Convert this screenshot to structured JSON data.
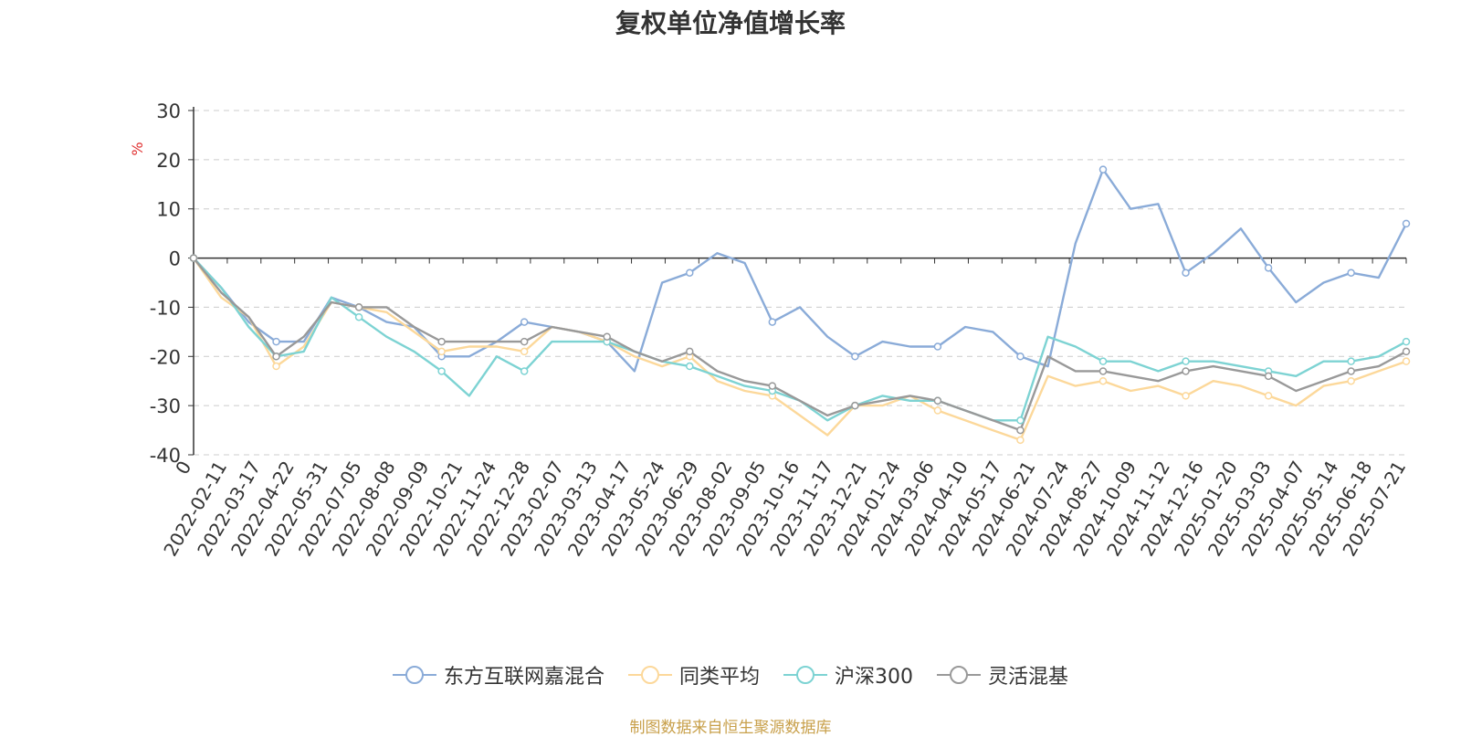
{
  "chart_data": {
    "type": "line",
    "title": "复权单位净值增长率",
    "ylabel": "%",
    "ylim": [
      -40,
      30
    ],
    "yticks": [
      30,
      20,
      10,
      0,
      -10,
      -20,
      -30,
      -40
    ],
    "grid": true,
    "legend_position": "bottom",
    "x_start_label": "0",
    "x_tick_labels": [
      "2022-02-11",
      "2022-03-17",
      "2022-04-22",
      "2022-05-31",
      "2022-07-05",
      "2022-08-08",
      "2022-09-09",
      "2022-10-21",
      "2022-11-24",
      "2022-12-28",
      "2023-02-07",
      "2023-03-13",
      "2023-04-17",
      "2023-05-24",
      "2023-06-29",
      "2023-08-02",
      "2023-09-05",
      "2023-10-16",
      "2023-11-17",
      "2023-12-21",
      "2024-01-24",
      "2024-03-06",
      "2024-04-10",
      "2024-05-17",
      "2024-06-21",
      "2024-07-24",
      "2024-08-27",
      "2024-10-09",
      "2024-11-12",
      "2024-12-16",
      "2025-01-20",
      "2025-03-03",
      "2025-04-07",
      "2025-05-14",
      "2025-06-18",
      "2025-07-21"
    ],
    "series": [
      {
        "name": "东方互联网嘉混合",
        "color": "#8aabd8",
        "values": [
          0,
          -6,
          -13,
          -17,
          -17,
          -8,
          -10,
          -13,
          -14,
          -20,
          -20,
          -17,
          -13,
          -14,
          -15,
          -17,
          -23,
          -5,
          -3,
          1,
          -1,
          -13,
          -10,
          -16,
          -20,
          -17,
          -18,
          -18,
          -14,
          -15,
          -20,
          -22,
          3,
          18,
          10,
          11,
          -3,
          1,
          6,
          -2,
          -9,
          -5,
          -3,
          -4,
          7
        ]
      },
      {
        "name": "同类平均",
        "color": "#fcd89a",
        "values": [
          0,
          -8,
          -12,
          -22,
          -18,
          -9,
          -10,
          -11,
          -15,
          -19,
          -18,
          -18,
          -19,
          -14,
          -15,
          -17,
          -20,
          -22,
          -20,
          -25,
          -27,
          -28,
          -32,
          -36,
          -30,
          -30,
          -28,
          -31,
          -33,
          -35,
          -37,
          -24,
          -26,
          -25,
          -27,
          -26,
          -28,
          -25,
          -26,
          -28,
          -30,
          -26,
          -25,
          -23,
          -21
        ]
      },
      {
        "name": "沪深300",
        "color": "#7dd3d3",
        "values": [
          0,
          -6,
          -14,
          -20,
          -19,
          -8,
          -12,
          -16,
          -19,
          -23,
          -28,
          -20,
          -23,
          -17,
          -17,
          -17,
          -19,
          -21,
          -22,
          -24,
          -26,
          -27,
          -29,
          -33,
          -30,
          -28,
          -29,
          -29,
          -31,
          -33,
          -33,
          -16,
          -18,
          -21,
          -21,
          -23,
          -21,
          -21,
          -22,
          -23,
          -24,
          -21,
          -21,
          -20,
          -17
        ]
      },
      {
        "name": "灵活混基",
        "color": "#999999",
        "values": [
          0,
          -7,
          -12,
          -20,
          -16,
          -9,
          -10,
          -10,
          -14,
          -17,
          -17,
          -17,
          -17,
          -14,
          -15,
          -16,
          -19,
          -21,
          -19,
          -23,
          -25,
          -26,
          -29,
          -32,
          -30,
          -29,
          -28,
          -29,
          -31,
          -33,
          -35,
          -20,
          -23,
          -23,
          -24,
          -25,
          -23,
          -22,
          -23,
          -24,
          -27,
          -25,
          -23,
          -22,
          -19
        ]
      }
    ]
  },
  "source_note": "制图数据来自恒生聚源数据库"
}
